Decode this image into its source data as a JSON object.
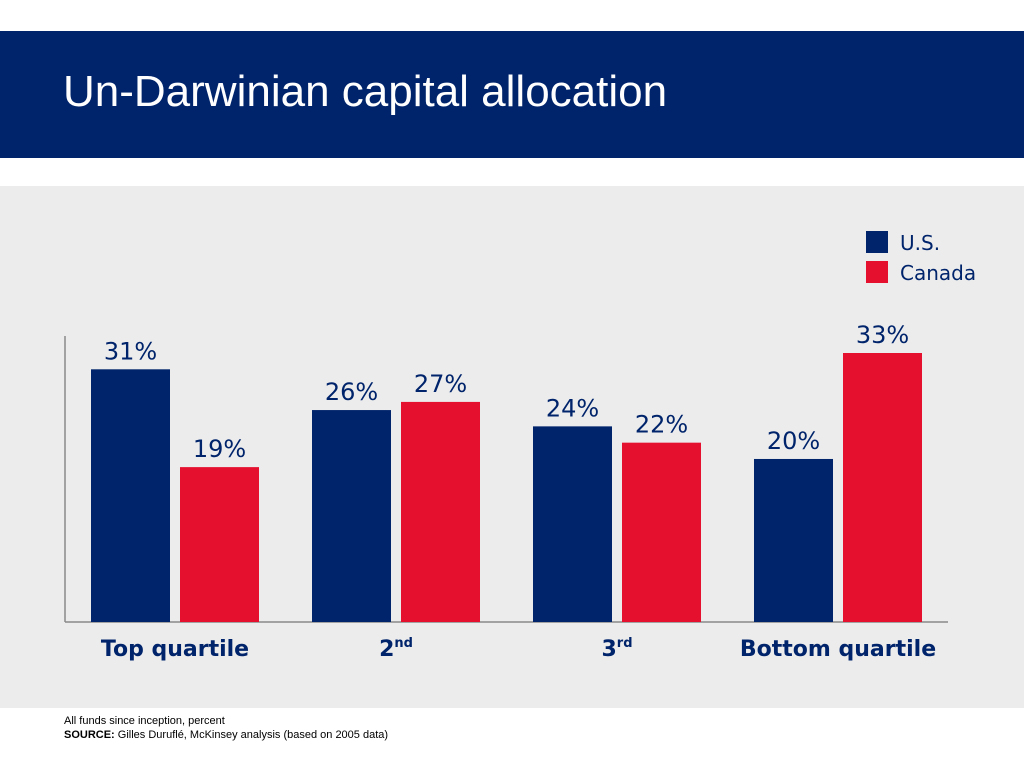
{
  "slide": {
    "title": "Un-Darwinian capital allocation"
  },
  "chart_data": {
    "type": "bar",
    "categories": [
      "Top quartile",
      "2",
      "3",
      "Bottom quartile"
    ],
    "category_superscripts": [
      "",
      "nd",
      "rd",
      ""
    ],
    "series": [
      {
        "name": "U.S.",
        "values": [
          31,
          26,
          24,
          20
        ],
        "color": "#00246b"
      },
      {
        "name": "Canada",
        "values": [
          19,
          27,
          22,
          33
        ],
        "color": "#e4102e"
      }
    ],
    "value_suffix": "%",
    "ylim": [
      0,
      33
    ],
    "grid": false,
    "legend_position": "top-right",
    "title": "",
    "xlabel": "",
    "ylabel": ""
  },
  "footnote": {
    "line1": "All funds since inception, percent",
    "source_label": "SOURCE:",
    "source_text": " Gilles Duruflé, McKinsey analysis (based  on 2005 data)"
  }
}
